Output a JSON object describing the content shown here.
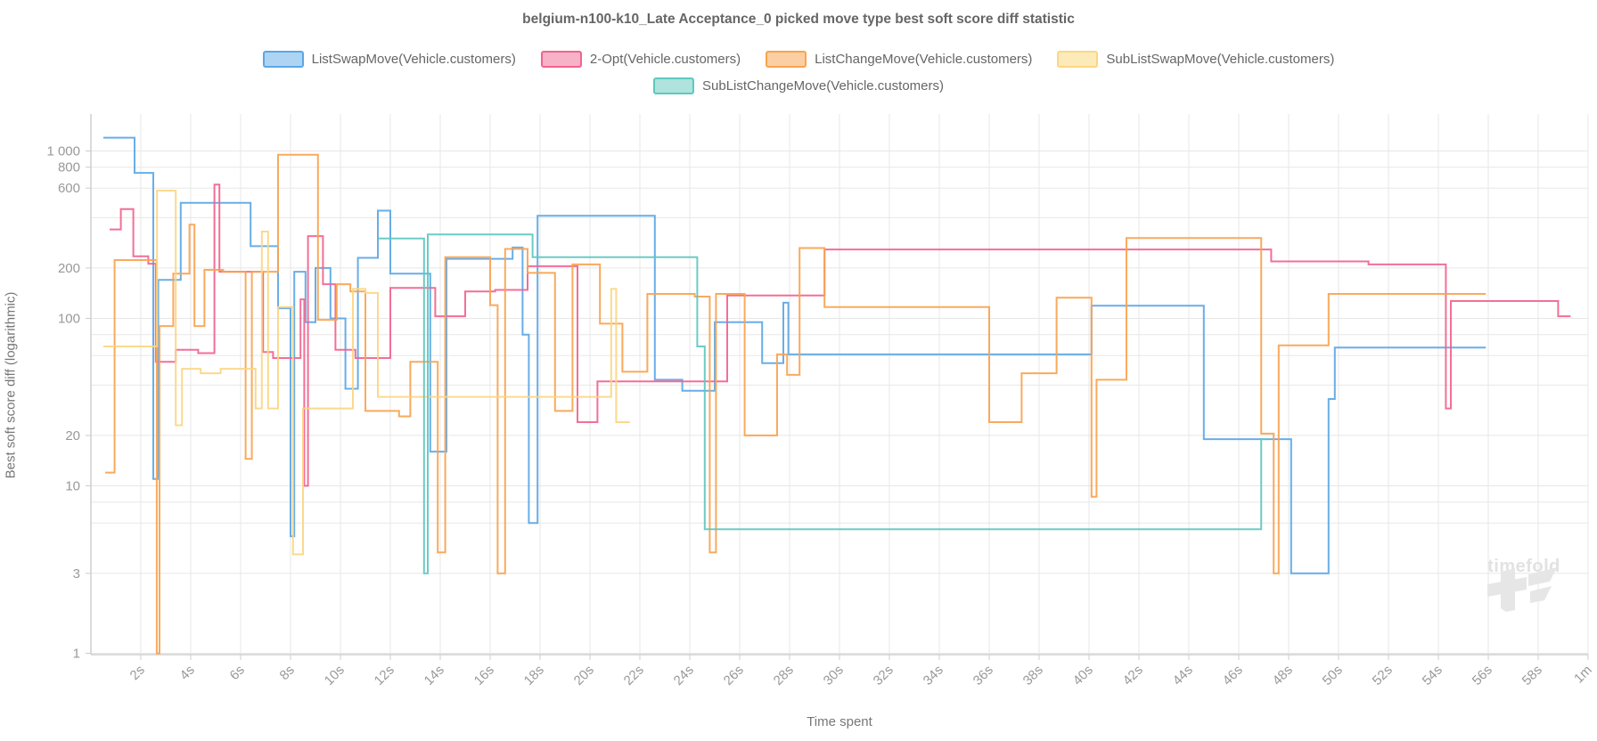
{
  "chart_data": {
    "type": "line",
    "step": true,
    "title": "belgium-n100-k10_Late Acceptance_0 picked move type best soft score diff statistic",
    "xlabel": "Time spent",
    "ylabel": "Best soft score diff (logarithmic)",
    "x_unit": "seconds",
    "xlim": [
      0,
      60
    ],
    "ylim": [
      1,
      1500
    ],
    "y_scale": "log",
    "grid": true,
    "legend_position": "top",
    "legend_rows": [
      [
        0,
        1,
        2,
        3
      ],
      [
        4
      ]
    ],
    "y_gridline_values": [
      1,
      3,
      6,
      8,
      10,
      20,
      40,
      60,
      80,
      100,
      200,
      400,
      600,
      800,
      1000
    ],
    "y_tick_labels": [
      {
        "text": "1 000",
        "v": 1000
      },
      {
        "text": "800",
        "v": 800
      },
      {
        "text": "600",
        "v": 600
      },
      {
        "text": "200",
        "v": 200
      },
      {
        "text": "100",
        "v": 100
      },
      {
        "text": "20",
        "v": 20
      },
      {
        "text": "10",
        "v": 10
      },
      {
        "text": "3",
        "v": 3
      },
      {
        "text": "1",
        "v": 1
      }
    ],
    "x_tick_labels": [
      {
        "v": 2,
        "text": "2s"
      },
      {
        "v": 4,
        "text": "4s"
      },
      {
        "v": 6,
        "text": "6s"
      },
      {
        "v": 8,
        "text": "8s"
      },
      {
        "v": 10,
        "text": "10s"
      },
      {
        "v": 12,
        "text": "12s"
      },
      {
        "v": 14,
        "text": "14s"
      },
      {
        "v": 16,
        "text": "16s"
      },
      {
        "v": 18,
        "text": "18s"
      },
      {
        "v": 20,
        "text": "20s"
      },
      {
        "v": 22,
        "text": "22s"
      },
      {
        "v": 24,
        "text": "24s"
      },
      {
        "v": 26,
        "text": "26s"
      },
      {
        "v": 28,
        "text": "28s"
      },
      {
        "v": 30,
        "text": "30s"
      },
      {
        "v": 32,
        "text": "32s"
      },
      {
        "v": 34,
        "text": "34s"
      },
      {
        "v": 36,
        "text": "36s"
      },
      {
        "v": 38,
        "text": "38s"
      },
      {
        "v": 40,
        "text": "40s"
      },
      {
        "v": 42,
        "text": "42s"
      },
      {
        "v": 44,
        "text": "44s"
      },
      {
        "v": 46,
        "text": "46s"
      },
      {
        "v": 48,
        "text": "48s"
      },
      {
        "v": 50,
        "text": "50s"
      },
      {
        "v": 52,
        "text": "52s"
      },
      {
        "v": 54,
        "text": "54s"
      },
      {
        "v": 56,
        "text": "56s"
      },
      {
        "v": 58,
        "text": "58s"
      },
      {
        "v": 60,
        "text": "1m"
      }
    ],
    "series": [
      {
        "id": "list-swap-move",
        "label": "ListSwapMove(Vehicle.customers)",
        "color": "#5ba7e6",
        "fill": "#aed4f4",
        "points": [
          [
            0.5,
            1200
          ],
          [
            1.75,
            740
          ],
          [
            2.5,
            11
          ],
          [
            2.7,
            170
          ],
          [
            3.6,
            490
          ],
          [
            6.4,
            270
          ],
          [
            7.5,
            115
          ],
          [
            8.0,
            5
          ],
          [
            8.15,
            190
          ],
          [
            8.6,
            95
          ],
          [
            9.0,
            200
          ],
          [
            9.6,
            100
          ],
          [
            10.2,
            38
          ],
          [
            10.7,
            230
          ],
          [
            11.5,
            440
          ],
          [
            12.0,
            185
          ],
          [
            13.6,
            16
          ],
          [
            14.25,
            227
          ],
          [
            16.9,
            265
          ],
          [
            17.3,
            80
          ],
          [
            17.55,
            6
          ],
          [
            17.9,
            410
          ],
          [
            22.6,
            43
          ],
          [
            23.7,
            37
          ],
          [
            25.0,
            95
          ],
          [
            26.9,
            54
          ],
          [
            27.75,
            124
          ],
          [
            27.95,
            61
          ],
          [
            40.1,
            119
          ],
          [
            44.6,
            19
          ],
          [
            48.1,
            3
          ],
          [
            49.6,
            33
          ],
          [
            49.85,
            67
          ],
          [
            55.9,
            67
          ]
        ]
      },
      {
        "id": "two-opt",
        "label": "2-Opt(Vehicle.customers)",
        "color": "#f2638e",
        "fill": "#f8b2c8",
        "points": [
          [
            0.75,
            340
          ],
          [
            1.2,
            450
          ],
          [
            1.7,
            235
          ],
          [
            2.3,
            212
          ],
          [
            2.6,
            55
          ],
          [
            3.4,
            65
          ],
          [
            4.3,
            62
          ],
          [
            4.95,
            630
          ],
          [
            5.15,
            190
          ],
          [
            6.9,
            63
          ],
          [
            7.3,
            58
          ],
          [
            8.4,
            130
          ],
          [
            8.55,
            10
          ],
          [
            8.7,
            310
          ],
          [
            9.3,
            160
          ],
          [
            9.8,
            65
          ],
          [
            10.6,
            58
          ],
          [
            12.0,
            152
          ],
          [
            13.8,
            103
          ],
          [
            15.0,
            145
          ],
          [
            16.2,
            148
          ],
          [
            17.5,
            205
          ],
          [
            19.5,
            24
          ],
          [
            20.3,
            42
          ],
          [
            25.5,
            137
          ],
          [
            29.4,
            258
          ],
          [
            47.3,
            219
          ],
          [
            51.2,
            210
          ],
          [
            54.3,
            29
          ],
          [
            54.5,
            127
          ],
          [
            58.8,
            103
          ],
          [
            59.3,
            103
          ]
        ]
      },
      {
        "id": "list-change-move",
        "label": "ListChangeMove(Vehicle.customers)",
        "color": "#f9a34f",
        "fill": "#fbcfa2",
        "points": [
          [
            0.57,
            12
          ],
          [
            0.95,
            223
          ],
          [
            2.64,
            1
          ],
          [
            2.75,
            90
          ],
          [
            3.3,
            185
          ],
          [
            3.95,
            363
          ],
          [
            4.15,
            90
          ],
          [
            4.55,
            195
          ],
          [
            5.3,
            190
          ],
          [
            6.2,
            14.5
          ],
          [
            6.45,
            190
          ],
          [
            7.5,
            950
          ],
          [
            9.1,
            98
          ],
          [
            9.85,
            160
          ],
          [
            10.4,
            145
          ],
          [
            11.0,
            28
          ],
          [
            12.35,
            26
          ],
          [
            12.8,
            55
          ],
          [
            13.9,
            4
          ],
          [
            14.2,
            232
          ],
          [
            16.0,
            120
          ],
          [
            16.3,
            3
          ],
          [
            16.6,
            260
          ],
          [
            17.5,
            187
          ],
          [
            18.6,
            28
          ],
          [
            19.3,
            210
          ],
          [
            20.4,
            93
          ],
          [
            21.3,
            48
          ],
          [
            22.3,
            140
          ],
          [
            24.2,
            135
          ],
          [
            24.8,
            4
          ],
          [
            25.05,
            140
          ],
          [
            26.2,
            20
          ],
          [
            27.5,
            61
          ],
          [
            27.9,
            46
          ],
          [
            28.4,
            263
          ],
          [
            29.4,
            117
          ],
          [
            36.0,
            24
          ],
          [
            37.3,
            47
          ],
          [
            38.7,
            133
          ],
          [
            40.1,
            8.6
          ],
          [
            40.3,
            43
          ],
          [
            41.5,
            302
          ],
          [
            46.9,
            20.5
          ],
          [
            47.4,
            3
          ],
          [
            47.6,
            69
          ],
          [
            49.6,
            140
          ],
          [
            55.9,
            140
          ]
        ]
      },
      {
        "id": "sub-list-swap-move",
        "label": "SubListSwapMove(Vehicle.customers)",
        "color": "#fbd683",
        "fill": "#fdeab9",
        "points": [
          [
            0.5,
            68
          ],
          [
            2.65,
            580
          ],
          [
            3.4,
            23
          ],
          [
            3.65,
            50
          ],
          [
            4.4,
            47
          ],
          [
            5.2,
            50
          ],
          [
            6.6,
            29
          ],
          [
            6.85,
            330
          ],
          [
            7.1,
            29
          ],
          [
            7.5,
            117
          ],
          [
            8.1,
            3.9
          ],
          [
            8.5,
            29
          ],
          [
            10.5,
            150
          ],
          [
            11.0,
            142
          ],
          [
            11.5,
            34
          ],
          [
            20.85,
            150
          ],
          [
            21.05,
            24
          ],
          [
            21.6,
            24
          ]
        ]
      },
      {
        "id": "sub-list-change-move",
        "label": "SubListChangeMove(Vehicle.customers)",
        "color": "#5ec8c0",
        "fill": "#aee3de",
        "points": [
          [
            11.5,
            300
          ],
          [
            13.35,
            3
          ],
          [
            13.5,
            317
          ],
          [
            17.7,
            232
          ],
          [
            24.3,
            68
          ],
          [
            24.6,
            5.5
          ],
          [
            46.9,
            19
          ],
          [
            47.1,
            19
          ]
        ]
      }
    ],
    "watermark": "timefold"
  }
}
